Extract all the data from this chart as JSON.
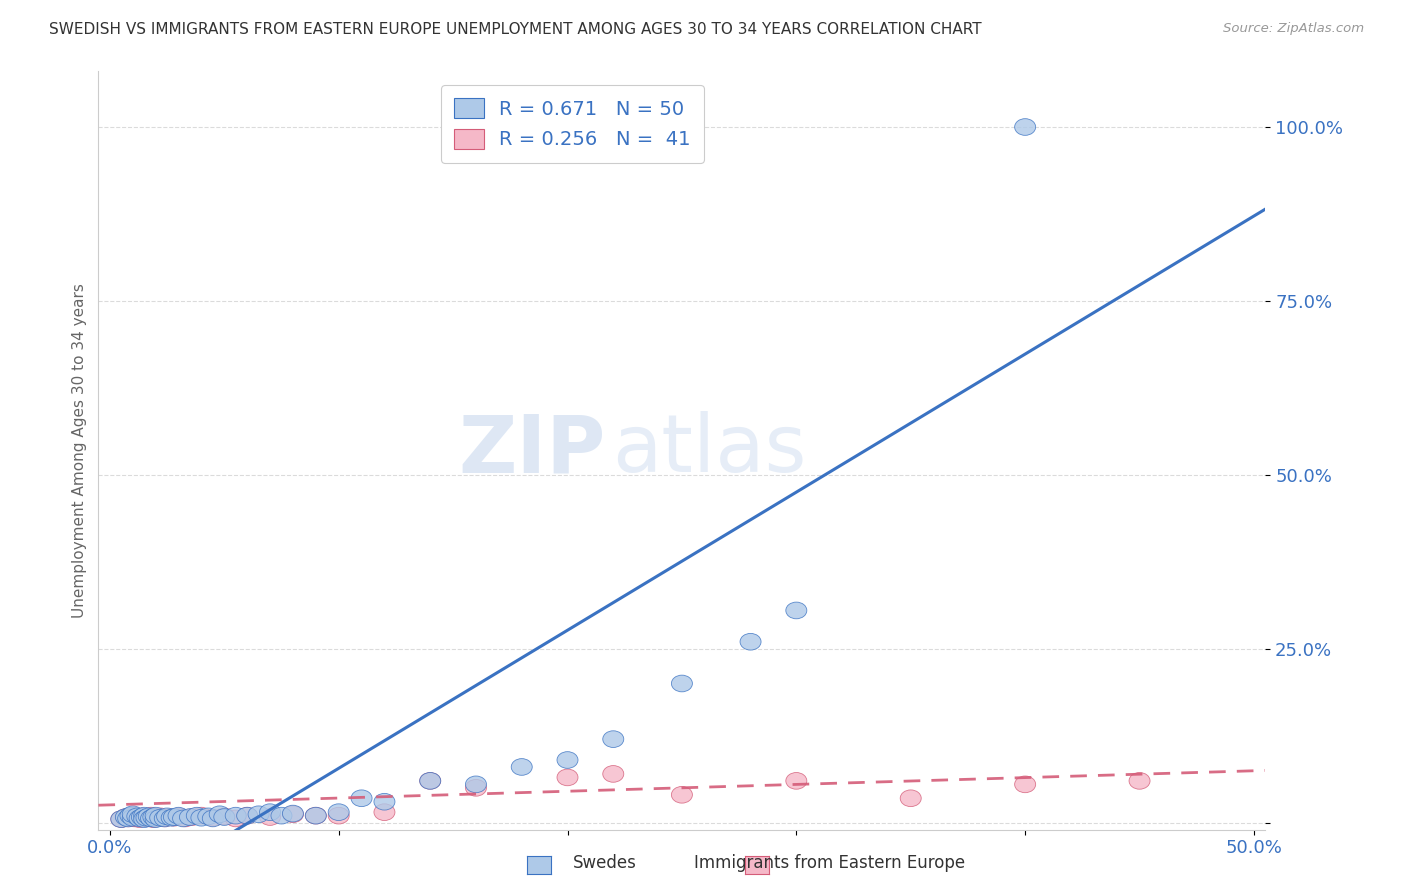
{
  "title": "SWEDISH VS IMMIGRANTS FROM EASTERN EUROPE UNEMPLOYMENT AMONG AGES 30 TO 34 YEARS CORRELATION CHART",
  "source": "Source: ZipAtlas.com",
  "ylabel": "Unemployment Among Ages 30 to 34 years",
  "xlim": [
    -0.005,
    0.505
  ],
  "ylim": [
    -0.01,
    1.08
  ],
  "ytick_positions": [
    0.0,
    0.25,
    0.5,
    0.75,
    1.0
  ],
  "yticklabels": [
    "",
    "25.0%",
    "50.0%",
    "75.0%",
    "100.0%"
  ],
  "watermark_zip": "ZIP",
  "watermark_atlas": "atlas",
  "blue_R": 0.671,
  "blue_N": 50,
  "pink_R": 0.256,
  "pink_N": 41,
  "blue_color": "#aec9e8",
  "blue_line_color": "#3a72c2",
  "pink_color": "#f5b8c8",
  "pink_line_color": "#d45c78",
  "background_color": "#ffffff",
  "legend_text_color": "#3a72c2",
  "grid_color": "#cccccc",
  "blue_line_x": [
    -0.03,
    0.505
  ],
  "blue_line_y": [
    -0.18,
    0.882
  ],
  "pink_line_x": [
    -0.005,
    0.505
  ],
  "pink_line_y": [
    0.025,
    0.075
  ],
  "blue_x": [
    0.005,
    0.007,
    0.008,
    0.009,
    0.01,
    0.01,
    0.012,
    0.013,
    0.014,
    0.015,
    0.015,
    0.016,
    0.017,
    0.018,
    0.019,
    0.02,
    0.02,
    0.022,
    0.024,
    0.025,
    0.027,
    0.028,
    0.03,
    0.032,
    0.035,
    0.038,
    0.04,
    0.043,
    0.045,
    0.048,
    0.05,
    0.055,
    0.06,
    0.065,
    0.07,
    0.075,
    0.08,
    0.09,
    0.1,
    0.11,
    0.12,
    0.14,
    0.16,
    0.18,
    0.2,
    0.22,
    0.25,
    0.28,
    0.3,
    0.4
  ],
  "blue_y": [
    0.005,
    0.008,
    0.006,
    0.01,
    0.007,
    0.012,
    0.009,
    0.006,
    0.008,
    0.01,
    0.005,
    0.007,
    0.009,
    0.006,
    0.008,
    0.005,
    0.01,
    0.007,
    0.006,
    0.009,
    0.007,
    0.008,
    0.01,
    0.006,
    0.008,
    0.01,
    0.007,
    0.009,
    0.006,
    0.012,
    0.008,
    0.01,
    0.01,
    0.012,
    0.015,
    0.01,
    0.013,
    0.01,
    0.015,
    0.035,
    0.03,
    0.06,
    0.055,
    0.08,
    0.09,
    0.12,
    0.2,
    0.26,
    0.305,
    1.0
  ],
  "pink_x": [
    0.005,
    0.007,
    0.008,
    0.009,
    0.01,
    0.011,
    0.012,
    0.013,
    0.014,
    0.015,
    0.016,
    0.017,
    0.018,
    0.019,
    0.02,
    0.022,
    0.024,
    0.026,
    0.028,
    0.03,
    0.033,
    0.036,
    0.04,
    0.045,
    0.05,
    0.055,
    0.06,
    0.07,
    0.08,
    0.09,
    0.1,
    0.12,
    0.14,
    0.16,
    0.2,
    0.22,
    0.25,
    0.3,
    0.35,
    0.4,
    0.45
  ],
  "pink_y": [
    0.005,
    0.008,
    0.006,
    0.007,
    0.01,
    0.006,
    0.008,
    0.005,
    0.009,
    0.007,
    0.006,
    0.008,
    0.01,
    0.005,
    0.007,
    0.009,
    0.006,
    0.008,
    0.007,
    0.009,
    0.006,
    0.008,
    0.01,
    0.007,
    0.009,
    0.006,
    0.01,
    0.008,
    0.012,
    0.01,
    0.01,
    0.015,
    0.06,
    0.05,
    0.065,
    0.07,
    0.04,
    0.06,
    0.035,
    0.055,
    0.06
  ]
}
